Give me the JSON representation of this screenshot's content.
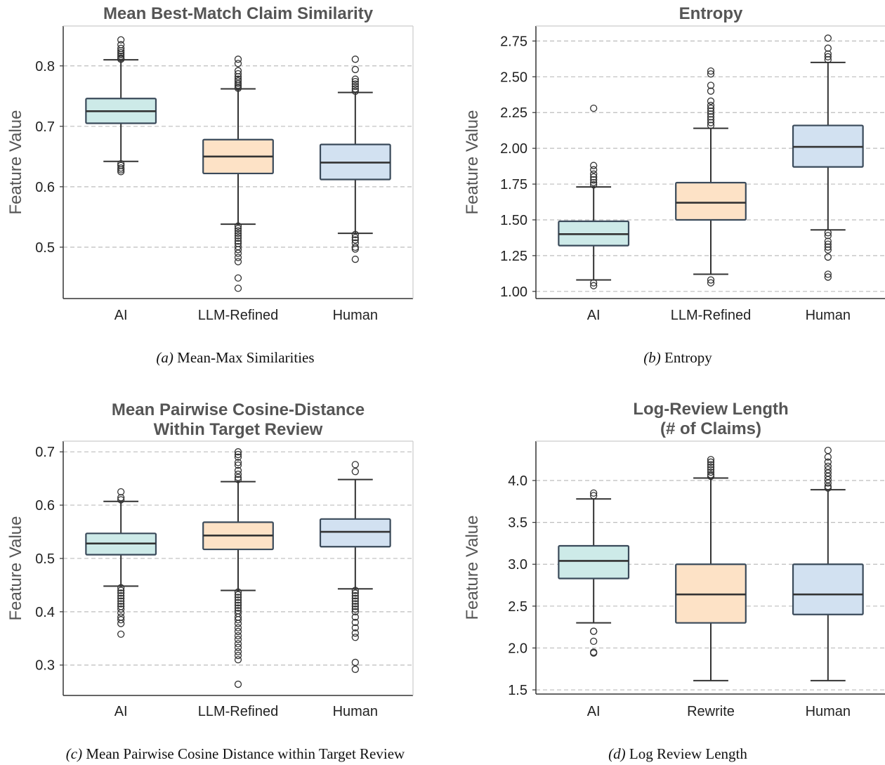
{
  "chart_data": [
    {
      "type": "box",
      "title": [
        "Mean Best-Match Claim Similarity"
      ],
      "ylabel": "Feature Value",
      "categories": [
        "AI",
        "LLM-Refined",
        "Human"
      ],
      "ylim": [
        0.415,
        0.866
      ],
      "yticks": [
        0.5,
        0.6,
        0.7,
        0.8
      ],
      "ytick_labels": [
        "0.5",
        "0.6",
        "0.7",
        "0.8"
      ],
      "grid": "y-dashed",
      "colors": [
        "#cdeae8",
        "#fde2c6",
        "#d2e1f1"
      ],
      "boxes": [
        {
          "category": "AI",
          "whisker_low": 0.642,
          "q1": 0.705,
          "median": 0.725,
          "q3": 0.746,
          "whisker_high": 0.81,
          "outliers": [
            0.843,
            0.835,
            0.829,
            0.825,
            0.822,
            0.819,
            0.816,
            0.813,
            0.811,
            0.638,
            0.635,
            0.631,
            0.628,
            0.625
          ]
        },
        {
          "category": "LLM-Refined",
          "whisker_low": 0.538,
          "q1": 0.622,
          "median": 0.65,
          "q3": 0.678,
          "whisker_high": 0.762,
          "outliers": [
            0.811,
            0.804,
            0.792,
            0.787,
            0.782,
            0.778,
            0.775,
            0.771,
            0.768,
            0.765,
            0.763,
            0.535,
            0.531,
            0.527,
            0.523,
            0.519,
            0.515,
            0.51,
            0.506,
            0.501,
            0.496,
            0.49,
            0.483,
            0.476,
            0.449,
            0.432
          ]
        },
        {
          "category": "Human",
          "whisker_low": 0.523,
          "q1": 0.612,
          "median": 0.64,
          "q3": 0.67,
          "whisker_high": 0.756,
          "outliers": [
            0.811,
            0.794,
            0.778,
            0.774,
            0.77,
            0.766,
            0.762,
            0.758,
            0.521,
            0.516,
            0.512,
            0.507,
            0.5,
            0.497,
            0.48
          ]
        }
      ],
      "caption_label": "(a)",
      "caption_text": "Mean-Max Similarities"
    },
    {
      "type": "box",
      "title": [
        "Entropy"
      ],
      "ylabel": "Feature Value",
      "categories": [
        "AI",
        "LLM-Refined",
        "Human"
      ],
      "ylim": [
        0.95,
        2.855
      ],
      "yticks": [
        1.0,
        1.25,
        1.5,
        1.75,
        2.0,
        2.25,
        2.5,
        2.75
      ],
      "ytick_labels": [
        "1.00",
        "1.25",
        "1.50",
        "1.75",
        "2.00",
        "2.25",
        "2.50",
        "2.75"
      ],
      "grid": "y-dashed",
      "colors": [
        "#cdeae8",
        "#fde2c6",
        "#d2e1f1"
      ],
      "boxes": [
        {
          "category": "AI",
          "whisker_low": 1.08,
          "q1": 1.32,
          "median": 1.4,
          "q3": 1.49,
          "whisker_high": 1.73,
          "outliers": [
            2.28,
            1.88,
            1.85,
            1.82,
            1.8,
            1.78,
            1.76,
            1.745,
            1.06,
            1.04
          ]
        },
        {
          "category": "LLM-Refined",
          "whisker_low": 1.12,
          "q1": 1.5,
          "median": 1.62,
          "q3": 1.76,
          "whisker_high": 2.14,
          "outliers": [
            2.54,
            2.52,
            2.44,
            2.4,
            2.33,
            2.3,
            2.28,
            2.26,
            2.24,
            2.22,
            2.2,
            2.18,
            2.16,
            1.08,
            1.06
          ]
        },
        {
          "category": "Human",
          "whisker_low": 1.43,
          "q1": 1.87,
          "median": 2.01,
          "q3": 2.16,
          "whisker_high": 2.6,
          "outliers": [
            2.77,
            2.7,
            2.66,
            2.64,
            2.62,
            1.41,
            1.39,
            1.35,
            1.33,
            1.31,
            1.29,
            1.24,
            1.12,
            1.1
          ]
        }
      ],
      "caption_label": "(b)",
      "caption_text": "Entropy"
    },
    {
      "type": "box",
      "title": [
        "Mean Pairwise Cosine-Distance",
        "Within Target Review"
      ],
      "ylabel": "Feature Value",
      "categories": [
        "AI",
        "LLM-Refined",
        "Human"
      ],
      "ylim": [
        0.243,
        0.72
      ],
      "yticks": [
        0.3,
        0.4,
        0.5,
        0.6,
        0.7
      ],
      "ytick_labels": [
        "0.3",
        "0.4",
        "0.5",
        "0.6",
        "0.7"
      ],
      "grid": "y-dashed",
      "colors": [
        "#cdeae8",
        "#fde2c6",
        "#d2e1f1"
      ],
      "boxes": [
        {
          "category": "AI",
          "whisker_low": 0.448,
          "q1": 0.507,
          "median": 0.528,
          "q3": 0.547,
          "whisker_high": 0.607,
          "outliers": [
            0.625,
            0.614,
            0.61,
            0.445,
            0.44,
            0.435,
            0.43,
            0.425,
            0.42,
            0.415,
            0.41,
            0.405,
            0.398,
            0.39,
            0.385,
            0.378,
            0.358
          ]
        },
        {
          "category": "LLM-Refined",
          "whisker_low": 0.44,
          "q1": 0.517,
          "median": 0.543,
          "q3": 0.568,
          "whisker_high": 0.644,
          "outliers": [
            0.7,
            0.695,
            0.69,
            0.68,
            0.675,
            0.665,
            0.658,
            0.652,
            0.648,
            0.437,
            0.432,
            0.427,
            0.422,
            0.417,
            0.412,
            0.407,
            0.402,
            0.397,
            0.39,
            0.385,
            0.378,
            0.37,
            0.363,
            0.355,
            0.348,
            0.34,
            0.333,
            0.325,
            0.318,
            0.31,
            0.264
          ]
        },
        {
          "category": "Human",
          "whisker_low": 0.443,
          "q1": 0.522,
          "median": 0.55,
          "q3": 0.574,
          "whisker_high": 0.648,
          "outliers": [
            0.676,
            0.663,
            0.44,
            0.435,
            0.43,
            0.425,
            0.42,
            0.415,
            0.41,
            0.405,
            0.4,
            0.39,
            0.38,
            0.37,
            0.36,
            0.352,
            0.305,
            0.292
          ]
        }
      ],
      "caption_label": "(c)",
      "caption_text": "Mean Pairwise Cosine Distance within Target Review"
    },
    {
      "type": "box",
      "title": [
        "Log-Review Length",
        "(# of Claims)"
      ],
      "ylabel": "Feature Value",
      "categories": [
        "AI",
        "Rewrite",
        "Human"
      ],
      "ylim": [
        1.45,
        4.47
      ],
      "yticks": [
        1.5,
        2.0,
        2.5,
        3.0,
        3.5,
        4.0
      ],
      "ytick_labels": [
        "1.5",
        "2.0",
        "2.5",
        "3.0",
        "3.5",
        "4.0"
      ],
      "grid": "y-dashed",
      "colors": [
        "#cdeae8",
        "#fde2c6",
        "#d2e1f1"
      ],
      "boxes": [
        {
          "category": "AI",
          "whisker_low": 2.3,
          "q1": 2.83,
          "median": 3.04,
          "q3": 3.22,
          "whisker_high": 3.78,
          "outliers": [
            3.85,
            3.82,
            2.2,
            2.2,
            2.08,
            1.95,
            1.94
          ]
        },
        {
          "category": "Rewrite",
          "whisker_low": 1.61,
          "q1": 2.3,
          "median": 2.64,
          "q3": 3.0,
          "whisker_high": 4.03,
          "outliers": [
            4.25,
            4.22,
            4.19,
            4.16,
            4.13,
            4.1,
            4.07,
            4.05
          ]
        },
        {
          "category": "Human",
          "whisker_low": 1.61,
          "q1": 2.4,
          "median": 2.64,
          "q3": 3.0,
          "whisker_high": 3.89,
          "outliers": [
            4.36,
            4.28,
            4.22,
            4.17,
            4.13,
            4.09,
            4.05,
            4.01,
            3.97,
            3.93,
            3.91
          ]
        }
      ],
      "caption_label": "(d)",
      "caption_text": "Log Review Length"
    }
  ]
}
